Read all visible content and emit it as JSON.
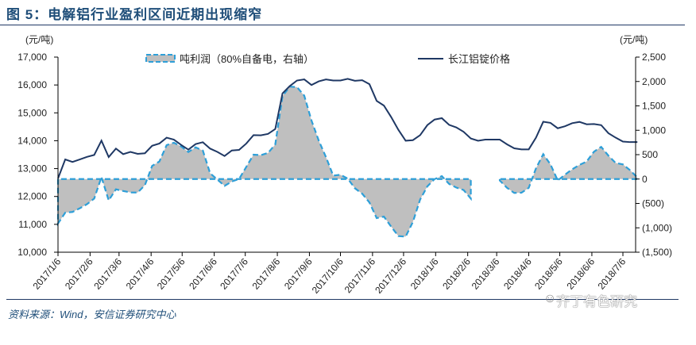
{
  "title": "图 5：电解铝行业盈利区间近期出现缩窄",
  "source": "资料来源：Wind，安信证券研究中心",
  "watermark": "齐丁有色研究",
  "chart_data": {
    "type": "line+area",
    "left_axis": {
      "unit": "(元/吨)",
      "ylim": [
        10000,
        17000
      ],
      "ticks": [
        10000,
        11000,
        12000,
        13000,
        14000,
        15000,
        16000,
        17000
      ],
      "tick_labels": [
        "10,000",
        "11,000",
        "12,000",
        "13,000",
        "14,000",
        "15,000",
        "16,000",
        "17,000"
      ]
    },
    "right_axis": {
      "unit": "(元/吨)",
      "ylim": [
        -1500,
        2500
      ],
      "ticks": [
        -1500,
        -1000,
        -500,
        0,
        500,
        1000,
        1500,
        2000,
        2500
      ],
      "tick_labels": [
        "(1,500)",
        "(1,000)",
        "(500)",
        "0",
        "500",
        "1,000",
        "1,500",
        "2,000",
        "2,500"
      ]
    },
    "x_tick_labels": [
      "2017/1/6",
      "2017/2/6",
      "2017/3/6",
      "2017/4/6",
      "2017/5/6",
      "2017/6/6",
      "2017/7/6",
      "2017/8/6",
      "2017/9/6",
      "2017/10/6",
      "2017/11/6",
      "2017/12/6",
      "2018/1/6",
      "2018/2/6",
      "2018/3/6",
      "2018/4/6",
      "2018/5/6",
      "2018/6/6",
      "2018/7/6"
    ],
    "grid": false,
    "legend_position": "top",
    "x": [
      "2017-01-06",
      "2017-01-13",
      "2017-01-20",
      "2017-01-27",
      "2017-02-03",
      "2017-02-10",
      "2017-02-17",
      "2017-02-24",
      "2017-03-03",
      "2017-03-10",
      "2017-03-17",
      "2017-03-24",
      "2017-03-31",
      "2017-04-07",
      "2017-04-14",
      "2017-04-21",
      "2017-04-28",
      "2017-05-05",
      "2017-05-12",
      "2017-05-19",
      "2017-05-26",
      "2017-06-02",
      "2017-06-09",
      "2017-06-16",
      "2017-06-23",
      "2017-06-30",
      "2017-07-07",
      "2017-07-14",
      "2017-07-21",
      "2017-07-28",
      "2017-08-04",
      "2017-08-11",
      "2017-08-18",
      "2017-08-25",
      "2017-09-01",
      "2017-09-08",
      "2017-09-15",
      "2017-09-22",
      "2017-09-29",
      "2017-10-06",
      "2017-10-13",
      "2017-10-20",
      "2017-10-27",
      "2017-11-03",
      "2017-11-10",
      "2017-11-17",
      "2017-11-24",
      "2017-12-01",
      "2017-12-08",
      "2017-12-15",
      "2017-12-22",
      "2017-12-29",
      "2018-01-05",
      "2018-01-12",
      "2018-01-19",
      "2018-01-26",
      "2018-02-02",
      "2018-02-09",
      "2018-02-16",
      "2018-02-23",
      "2018-03-02",
      "2018-03-09",
      "2018-03-16",
      "2018-03-23",
      "2018-03-30",
      "2018-04-06",
      "2018-04-13",
      "2018-04-20",
      "2018-04-27",
      "2018-05-04",
      "2018-05-11",
      "2018-05-18",
      "2018-05-25",
      "2018-06-01",
      "2018-06-08",
      "2018-06-15",
      "2018-06-22",
      "2018-06-29",
      "2018-07-06",
      "2018-07-13",
      "2018-07-20"
    ],
    "series": [
      {
        "name": "吨利润（80%自备电，右轴）",
        "axis": "right",
        "type": "area",
        "color": "#2E9FD8",
        "fill": "#BFBFBF",
        "values": [
          -910,
          -690,
          -675,
          -600,
          -515,
          -400,
          40,
          -438,
          -210,
          -245,
          -275,
          -276,
          -125,
          270,
          360,
          695,
          744,
          668,
          554,
          650,
          584,
          120,
          -10,
          -140,
          -50,
          0,
          250,
          500,
          490,
          535,
          710,
          1700,
          1895,
          1885,
          1710,
          1200,
          790,
          450,
          70,
          88,
          10,
          -190,
          -300,
          -480,
          -800,
          -770,
          -975,
          -1170,
          -1180,
          -880,
          -420,
          -150,
          0,
          60,
          -100,
          -175,
          -225,
          -400,
          null,
          null,
          null,
          -30,
          -180,
          -285,
          -280,
          -180,
          220,
          510,
          300,
          -30,
          90,
          200,
          290,
          360,
          560,
          660,
          480,
          330,
          300,
          180,
          30
        ]
      },
      {
        "name": "长江铝锭价格",
        "axis": "left",
        "type": "line",
        "color": "#1F3864",
        "values": [
          12646,
          13329,
          13240,
          13329,
          13420,
          13490,
          14003,
          13414,
          13718,
          13519,
          13600,
          13528,
          13550,
          13820,
          13900,
          14110,
          14040,
          13850,
          13680,
          13880,
          13946,
          13718,
          13600,
          13452,
          13650,
          13670,
          13900,
          14200,
          14195,
          14245,
          14420,
          15700,
          15960,
          16160,
          16200,
          16000,
          16130,
          16200,
          16160,
          16160,
          16220,
          16150,
          16170,
          16030,
          15430,
          15260,
          14850,
          14390,
          14000,
          14020,
          14200,
          14560,
          14760,
          14810,
          14570,
          14476,
          14320,
          14080,
          14000,
          14041,
          14041,
          14041,
          13870,
          13728,
          13690,
          13690,
          14110,
          14680,
          14640,
          14447,
          14520,
          14630,
          14675,
          14590,
          14600,
          14560,
          14270,
          14110,
          13970,
          13950,
          13950
        ]
      }
    ]
  }
}
